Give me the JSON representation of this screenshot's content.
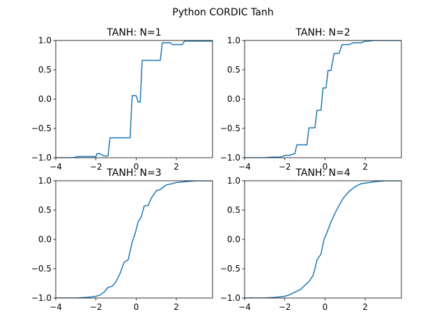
{
  "figure_title": "Python CORDIC Tanh",
  "chart_data": [
    {
      "type": "line",
      "title": "TANH: N=1",
      "xlim": [
        -4,
        3.8
      ],
      "ylim": [
        -1,
        1
      ],
      "xticks": [
        -4,
        -2,
        0,
        2
      ],
      "xtick_labels": [
        "−4",
        "−2",
        "0",
        "2"
      ],
      "yticks": [
        -1,
        -0.5,
        0,
        0.5,
        1
      ],
      "ytick_labels": [
        "−1.0",
        "−0.5",
        "0.0",
        "0.5",
        "1.0"
      ],
      "color": "#1f77b4",
      "series": [
        {
          "x": [
            -4.0,
            -3.1,
            -2.9,
            -2.0,
            -1.95,
            -1.8,
            -1.6,
            -1.4,
            -1.3,
            -0.3,
            -0.2,
            0.0,
            0.1,
            0.2,
            0.3,
            1.2,
            1.3,
            1.7,
            1.8,
            2.3,
            2.4,
            3.8
          ],
          "y": [
            -1.0,
            -1.0,
            -0.98,
            -0.98,
            -0.93,
            -0.93,
            -0.97,
            -0.97,
            -0.66,
            -0.66,
            0.06,
            0.06,
            -0.05,
            -0.05,
            0.66,
            0.66,
            0.96,
            0.96,
            0.93,
            0.93,
            0.99,
            0.99
          ]
        }
      ]
    },
    {
      "type": "line",
      "title": "TANH: N=2",
      "xlim": [
        -4,
        3.8
      ],
      "ylim": [
        -1,
        1
      ],
      "xticks": [
        -4,
        -2,
        0,
        2
      ],
      "xtick_labels": [
        "−4",
        "−2",
        "0",
        "2"
      ],
      "yticks": [
        -1,
        -0.5,
        0,
        0.5,
        1
      ],
      "ytick_labels": [
        "−1.0",
        "−0.5",
        "0.0",
        "0.5",
        "1.0"
      ],
      "color": "#1f77b4",
      "series": [
        {
          "x": [
            -4.0,
            -3.0,
            -2.6,
            -2.2,
            -2.0,
            -1.8,
            -1.5,
            -1.4,
            -0.9,
            -0.8,
            -0.5,
            -0.4,
            -0.2,
            -0.1,
            0.05,
            0.15,
            0.3,
            0.45,
            0.7,
            0.85,
            1.2,
            1.4,
            1.8,
            2.0,
            2.2,
            2.4,
            2.6,
            3.8
          ],
          "y": [
            -1.0,
            -1.0,
            -0.99,
            -0.99,
            -0.96,
            -0.96,
            -0.93,
            -0.78,
            -0.78,
            -0.49,
            -0.49,
            -0.19,
            -0.19,
            0.19,
            0.19,
            0.49,
            0.49,
            0.78,
            0.78,
            0.93,
            0.93,
            0.96,
            0.96,
            0.99,
            0.99,
            1.0,
            1.0,
            1.0
          ]
        }
      ]
    },
    {
      "type": "line",
      "title": "TANH: N=3",
      "xlim": [
        -4,
        3.8
      ],
      "ylim": [
        -1,
        1
      ],
      "xticks": [
        -4,
        -2,
        0,
        2
      ],
      "xtick_labels": [
        "−4",
        "−2",
        "0",
        "2"
      ],
      "yticks": [
        -1,
        -0.5,
        0,
        0.5,
        1
      ],
      "ytick_labels": [
        "−1.0",
        "−0.5",
        "0.0",
        "0.5",
        "1.0"
      ],
      "color": "#1f77b4",
      "series": [
        {
          "x": [
            -4.0,
            -3.0,
            -2.5,
            -2.2,
            -2.0,
            -1.8,
            -1.6,
            -1.4,
            -1.2,
            -1.0,
            -0.8,
            -0.6,
            -0.4,
            -0.2,
            -0.05,
            0.1,
            0.25,
            0.4,
            0.6,
            0.75,
            1.0,
            1.2,
            1.5,
            1.8,
            2.0,
            2.3,
            2.6,
            3.0,
            3.8
          ],
          "y": [
            -1.0,
            -1.0,
            -0.99,
            -0.98,
            -0.97,
            -0.95,
            -0.9,
            -0.82,
            -0.8,
            -0.72,
            -0.58,
            -0.39,
            -0.35,
            -0.05,
            0.1,
            0.3,
            0.38,
            0.57,
            0.58,
            0.7,
            0.83,
            0.85,
            0.93,
            0.95,
            0.97,
            0.98,
            0.99,
            1.0,
            1.0
          ]
        }
      ]
    },
    {
      "type": "line",
      "title": "TANH: N=4",
      "xlim": [
        -4,
        3.8
      ],
      "ylim": [
        -1,
        1
      ],
      "xticks": [
        -4,
        -2,
        0,
        2
      ],
      "xtick_labels": [
        "−4",
        "−2",
        "0",
        "2"
      ],
      "yticks": [
        -1,
        -0.5,
        0,
        0.5,
        1
      ],
      "ytick_labels": [
        "−1.0",
        "−0.5",
        "0.0",
        "0.5",
        "1.0"
      ],
      "color": "#1f77b4",
      "series": [
        {
          "x": [
            -4.0,
            -3.0,
            -2.5,
            -2.0,
            -1.8,
            -1.5,
            -1.2,
            -1.0,
            -0.8,
            -0.6,
            -0.5,
            -0.4,
            -0.2,
            -0.05,
            0.1,
            0.3,
            0.5,
            0.7,
            0.9,
            1.2,
            1.5,
            1.8,
            2.2,
            2.6,
            3.0,
            3.8
          ],
          "y": [
            -1.0,
            -1.0,
            -0.99,
            -0.97,
            -0.95,
            -0.9,
            -0.85,
            -0.78,
            -0.72,
            -0.62,
            -0.5,
            -0.35,
            -0.25,
            0.0,
            0.12,
            0.3,
            0.45,
            0.58,
            0.7,
            0.82,
            0.9,
            0.95,
            0.97,
            0.99,
            1.0,
            1.0
          ]
        }
      ]
    }
  ]
}
